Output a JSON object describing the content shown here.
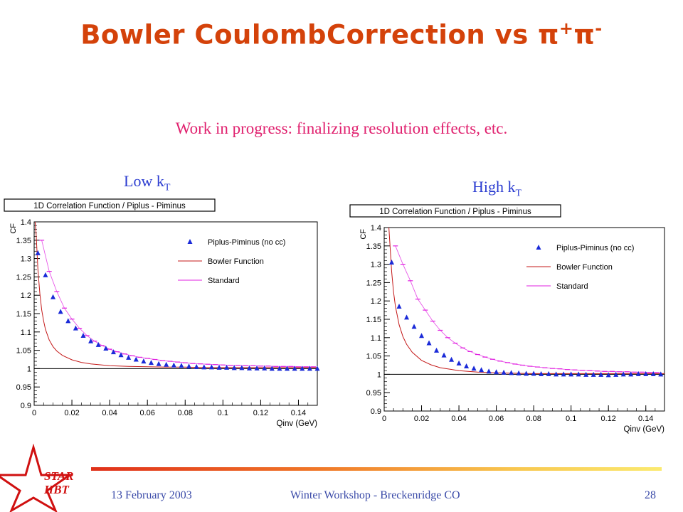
{
  "slide": {
    "title": "Bowler CoulombCorrection vs",
    "title_pi1": "π",
    "title_sup1": "+",
    "title_pi2": "π",
    "title_sup2": "-",
    "subtitle": "Work in progress: finalizing resolution effects, etc.",
    "label_left": "Low k",
    "label_left_sub": "T",
    "label_right": "High k",
    "label_right_sub": "T",
    "colors": {
      "title": "#d4420a",
      "subtitle": "#e0206e",
      "label": "#2a3bd0",
      "footer": "#3a4aa8",
      "star": "#d01010"
    }
  },
  "footer": {
    "date": "13 February 2003",
    "event": "Winter Workshop - Breckenridge CO",
    "page": "28",
    "logo_line1": "STAR",
    "logo_line2": "HBT"
  },
  "chart_data": [
    {
      "type": "scatter",
      "title": "1D Correlation Function / Piplus - Piminus",
      "xlabel": "Qinv (GeV)",
      "ylabel": "CF",
      "xlim": [
        0,
        0.15
      ],
      "ylim": [
        0.9,
        1.4
      ],
      "xticks": [
        "0",
        "0.02",
        "0.04",
        "0.06",
        "0.08",
        "0.1",
        "0.12",
        "0.14"
      ],
      "yticks": [
        "0.9",
        "0.95",
        "1",
        "1.05",
        "1.1",
        "1.15",
        "1.2",
        "1.25",
        "1.3",
        "1.35",
        "1.4"
      ],
      "legend": [
        "Piplus-Piminus (no cc)",
        "Bowler Function",
        "Standard"
      ],
      "legend_position": "top-right",
      "series": [
        {
          "name": "Piplus-Piminus (no cc)",
          "marker": "triangle",
          "color": "#1a2ad8",
          "x": [
            0.002,
            0.006,
            0.01,
            0.014,
            0.018,
            0.022,
            0.026,
            0.03,
            0.034,
            0.038,
            0.042,
            0.046,
            0.05,
            0.054,
            0.058,
            0.062,
            0.066,
            0.07,
            0.074,
            0.078,
            0.082,
            0.086,
            0.09,
            0.094,
            0.098,
            0.102,
            0.106,
            0.11,
            0.114,
            0.118,
            0.122,
            0.126,
            0.13,
            0.134,
            0.138,
            0.142,
            0.146,
            0.15
          ],
          "y": [
            1.315,
            1.255,
            1.195,
            1.155,
            1.13,
            1.11,
            1.09,
            1.075,
            1.065,
            1.055,
            1.045,
            1.037,
            1.03,
            1.025,
            1.02,
            1.016,
            1.013,
            1.011,
            1.009,
            1.008,
            1.006,
            1.005,
            1.004,
            1.004,
            1.003,
            1.003,
            1.002,
            1.002,
            1.001,
            1.001,
            1.001,
            1.0,
            1.0,
            1.0,
            1.0,
            1.0,
            1.0,
            1.0
          ]
        },
        {
          "name": "Bowler Function",
          "line": "curve",
          "color": "#c41a1a",
          "x": [
            0.0005,
            0.001,
            0.002,
            0.003,
            0.004,
            0.005,
            0.006,
            0.008,
            0.01,
            0.012,
            0.015,
            0.02,
            0.025,
            0.03,
            0.04,
            0.05,
            0.06,
            0.07,
            0.08,
            0.09,
            0.1,
            0.12,
            0.15
          ],
          "y": [
            1.4,
            1.37,
            1.27,
            1.205,
            1.16,
            1.13,
            1.107,
            1.078,
            1.06,
            1.048,
            1.036,
            1.024,
            1.017,
            1.013,
            1.008,
            1.006,
            1.005,
            1.004,
            1.004,
            1.003,
            1.003,
            1.003,
            1.003
          ]
        },
        {
          "name": "Standard",
          "marker": "dash",
          "color": "#e020e0",
          "x": [
            0.004,
            0.008,
            0.012,
            0.016,
            0.02,
            0.024,
            0.028,
            0.032,
            0.036,
            0.04,
            0.044,
            0.048,
            0.052,
            0.056,
            0.06,
            0.064,
            0.068,
            0.072,
            0.076,
            0.08,
            0.084,
            0.088,
            0.092,
            0.096,
            0.1,
            0.104,
            0.108,
            0.112,
            0.116,
            0.12,
            0.124,
            0.128,
            0.132,
            0.136,
            0.14,
            0.144,
            0.148
          ],
          "y": [
            1.35,
            1.265,
            1.21,
            1.165,
            1.135,
            1.11,
            1.09,
            1.075,
            1.063,
            1.053,
            1.046,
            1.04,
            1.035,
            1.031,
            1.028,
            1.025,
            1.022,
            1.02,
            1.018,
            1.016,
            1.014,
            1.013,
            1.012,
            1.011,
            1.01,
            1.009,
            1.009,
            1.008,
            1.008,
            1.007,
            1.007,
            1.006,
            1.006,
            1.006,
            1.005,
            1.005,
            1.005
          ]
        }
      ]
    },
    {
      "type": "scatter",
      "title": "1D Correlation Function / Piplus - Piminus",
      "xlabel": "Qinv (GeV)",
      "ylabel": "CF",
      "xlim": [
        0,
        0.15
      ],
      "ylim": [
        0.9,
        1.4
      ],
      "xticks": [
        "0",
        "0.02",
        "0.04",
        "0.06",
        "0.08",
        "0.1",
        "0.12",
        "0.14"
      ],
      "yticks": [
        "0.9",
        "0.95",
        "1",
        "1.05",
        "1.1",
        "1.15",
        "1.2",
        "1.25",
        "1.3",
        "1.35",
        "1.4"
      ],
      "legend": [
        "Piplus-Piminus (no cc)",
        "Bowler Function",
        "Standard"
      ],
      "legend_position": "top-right",
      "series": [
        {
          "name": "Piplus-Piminus (no cc)",
          "marker": "triangle",
          "color": "#1a2ad8",
          "x": [
            0.004,
            0.008,
            0.012,
            0.016,
            0.02,
            0.024,
            0.028,
            0.032,
            0.036,
            0.04,
            0.044,
            0.048,
            0.052,
            0.056,
            0.06,
            0.064,
            0.068,
            0.072,
            0.076,
            0.08,
            0.084,
            0.088,
            0.092,
            0.096,
            0.1,
            0.104,
            0.108,
            0.112,
            0.116,
            0.12,
            0.124,
            0.128,
            0.132,
            0.136,
            0.14,
            0.144,
            0.148
          ],
          "y": [
            1.305,
            1.185,
            1.155,
            1.13,
            1.105,
            1.085,
            1.065,
            1.052,
            1.04,
            1.03,
            1.022,
            1.016,
            1.012,
            1.008,
            1.006,
            1.005,
            1.004,
            1.003,
            1.002,
            1.002,
            1.001,
            1.001,
            1.0,
            1.0,
            1.0,
            1.0,
            0.999,
            0.999,
            0.999,
            0.998,
            0.999,
            1.0,
            1.0,
            1.001,
            1.001,
            1.001,
            1.0
          ]
        },
        {
          "name": "Bowler Function",
          "line": "curve",
          "color": "#c41a1a",
          "x": [
            0.0025,
            0.003,
            0.004,
            0.005,
            0.006,
            0.008,
            0.01,
            0.012,
            0.015,
            0.02,
            0.025,
            0.03,
            0.04,
            0.05,
            0.06,
            0.07,
            0.08,
            0.09,
            0.1,
            0.12,
            0.15
          ],
          "y": [
            1.4,
            1.36,
            1.28,
            1.225,
            1.185,
            1.135,
            1.103,
            1.082,
            1.06,
            1.038,
            1.026,
            1.018,
            1.01,
            1.006,
            1.004,
            1.003,
            1.002,
            1.002,
            1.002,
            1.002,
            1.002
          ]
        },
        {
          "name": "Standard",
          "marker": "dash",
          "color": "#e020e0",
          "x": [
            0.006,
            0.01,
            0.014,
            0.018,
            0.022,
            0.026,
            0.03,
            0.034,
            0.038,
            0.042,
            0.046,
            0.05,
            0.054,
            0.058,
            0.062,
            0.066,
            0.07,
            0.074,
            0.078,
            0.082,
            0.086,
            0.09,
            0.094,
            0.098,
            0.102,
            0.106,
            0.11,
            0.114,
            0.118,
            0.122,
            0.126,
            0.13,
            0.134,
            0.138,
            0.142,
            0.146
          ],
          "y": [
            1.35,
            1.3,
            1.255,
            1.205,
            1.175,
            1.145,
            1.12,
            1.1,
            1.085,
            1.072,
            1.062,
            1.054,
            1.047,
            1.041,
            1.036,
            1.032,
            1.028,
            1.025,
            1.022,
            1.02,
            1.018,
            1.016,
            1.015,
            1.013,
            1.012,
            1.011,
            1.01,
            1.009,
            1.008,
            1.008,
            1.007,
            1.007,
            1.006,
            1.006,
            1.005,
            1.005
          ]
        }
      ]
    }
  ]
}
